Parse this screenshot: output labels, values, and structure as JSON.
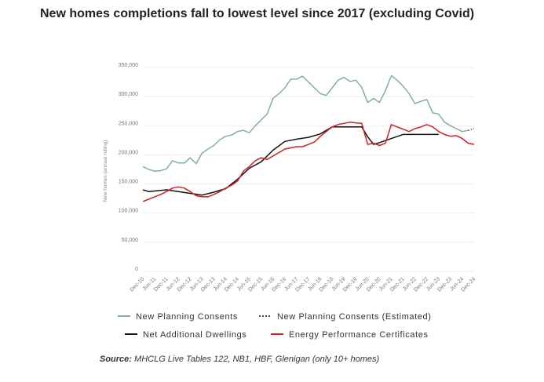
{
  "chart_data": {
    "type": "line",
    "title": "New homes completions fall to lowest level since 2017 (excluding Covid)",
    "ylabel": "New homes (annual rolling)",
    "xlabel": "",
    "ylim": [
      0,
      350000
    ],
    "yticks": [
      0,
      50000,
      100000,
      150000,
      200000,
      250000,
      300000,
      350000
    ],
    "ytick_labels": [
      "0",
      "50,000",
      "100,000",
      "150,000",
      "200,000",
      "250,000",
      "300,000",
      "350,000"
    ],
    "categories": [
      "Dec-10",
      "Jun-11",
      "Dec-11",
      "Jun-12",
      "Dec-12",
      "Jun-13",
      "Dec-13",
      "Jun-14",
      "Dec-14",
      "Jun-15",
      "Dec-15",
      "Jun-16",
      "Dec-16",
      "Jun-17",
      "Dec-17",
      "Jun-18",
      "Dec-18",
      "Jun-19",
      "Dec-19",
      "Jun-20",
      "Dec-20",
      "Jun-21",
      "Dec-21",
      "Jun-22",
      "Dec-22",
      "Jun-23",
      "Dec-23",
      "Jun-24",
      "Dec-24"
    ],
    "grid": true,
    "legend_position": "bottom",
    "series": [
      {
        "name": "New Planning Consents",
        "color": "#7fb29a",
        "style": "solid",
        "x": [
          0,
          0.5,
          1,
          1.5,
          2,
          2.5,
          3,
          3.5,
          4,
          4.5,
          5,
          5.5,
          6,
          6.5,
          7,
          7.5,
          8,
          8.5,
          9,
          9.5,
          10,
          10.5,
          11,
          11.5,
          12,
          12.5,
          13,
          13.5,
          14,
          14.5,
          15,
          15.5,
          16,
          16.5,
          17,
          17.5,
          18,
          18.5,
          19,
          19.5,
          20,
          20.5,
          21,
          21.5,
          22,
          22.5,
          23,
          23.5,
          24,
          24.5,
          25,
          25.5,
          26,
          26.5,
          27,
          27.5
        ],
        "values": [
          180000,
          175000,
          172000,
          173000,
          176000,
          190000,
          186000,
          186000,
          195000,
          185000,
          203000,
          210000,
          216000,
          226000,
          232000,
          234000,
          240000,
          242000,
          238000,
          250000,
          260000,
          270000,
          297000,
          305000,
          315000,
          330000,
          330000,
          335000,
          325000,
          315000,
          305000,
          302000,
          315000,
          328000,
          333000,
          326000,
          328000,
          316000,
          290000,
          297000,
          290000,
          310000,
          336000,
          328000,
          318000,
          305000,
          288000,
          292000,
          295000,
          272000,
          270000,
          256000,
          250000,
          245000,
          240000,
          242000
        ]
      },
      {
        "name": "New Planning Consents (Estimated)",
        "color": "#2b4a7a",
        "style": "dotted",
        "x": [
          27.5,
          28
        ],
        "values": [
          242000,
          245000
        ]
      },
      {
        "name": "Net Additional Dwellings",
        "color": "#111111",
        "style": "solid",
        "x": [
          0,
          0.5,
          2,
          3,
          4,
          5,
          6,
          7,
          8,
          9,
          10,
          11,
          12,
          13,
          14,
          15,
          16,
          17,
          18,
          18.5,
          19,
          19.5,
          20,
          21,
          22,
          23,
          24,
          25
        ],
        "values": [
          140000,
          137000,
          140000,
          137000,
          134000,
          131000,
          136000,
          142000,
          158000,
          177000,
          188000,
          208000,
          223000,
          227000,
          230000,
          236000,
          248000,
          248000,
          248000,
          248000,
          231000,
          218000,
          221000,
          228000,
          235000,
          235000,
          235000,
          235000
        ]
      },
      {
        "name": "Energy Performance Certificates",
        "color": "#cc2222",
        "style": "solid",
        "x": [
          0,
          0.5,
          1,
          1.5,
          2,
          2.5,
          3,
          3.5,
          4,
          4.5,
          5,
          5.5,
          6,
          6.5,
          7,
          7.5,
          8,
          8.5,
          9,
          9.5,
          10,
          10.5,
          11,
          11.5,
          12,
          12.5,
          13,
          13.5,
          14,
          14.5,
          15,
          15.5,
          16,
          16.5,
          17,
          17.5,
          18,
          18.5,
          19,
          19.5,
          20,
          20.5,
          21,
          21.5,
          22,
          22.5,
          23,
          23.5,
          24,
          24.5,
          25,
          25.5,
          26,
          26.5,
          27,
          27.5,
          28
        ],
        "values": [
          120000,
          124000,
          128000,
          132000,
          137000,
          143000,
          145000,
          143000,
          137000,
          130000,
          128000,
          128000,
          132000,
          137000,
          143000,
          148000,
          155000,
          172000,
          180000,
          190000,
          195000,
          192000,
          198000,
          204000,
          210000,
          212000,
          214000,
          214000,
          218000,
          222000,
          232000,
          240000,
          248000,
          252000,
          254000,
          256000,
          255000,
          254000,
          218000,
          220000,
          216000,
          220000,
          252000,
          248000,
          244000,
          240000,
          245000,
          248000,
          252000,
          248000,
          240000,
          235000,
          232000,
          233000,
          228000,
          220000,
          218000
        ]
      }
    ]
  },
  "source": {
    "label": "Source:",
    "text": "MHCLG Live Tables 122, NB1, HBF, Glenigan (only 10+ homes)"
  }
}
